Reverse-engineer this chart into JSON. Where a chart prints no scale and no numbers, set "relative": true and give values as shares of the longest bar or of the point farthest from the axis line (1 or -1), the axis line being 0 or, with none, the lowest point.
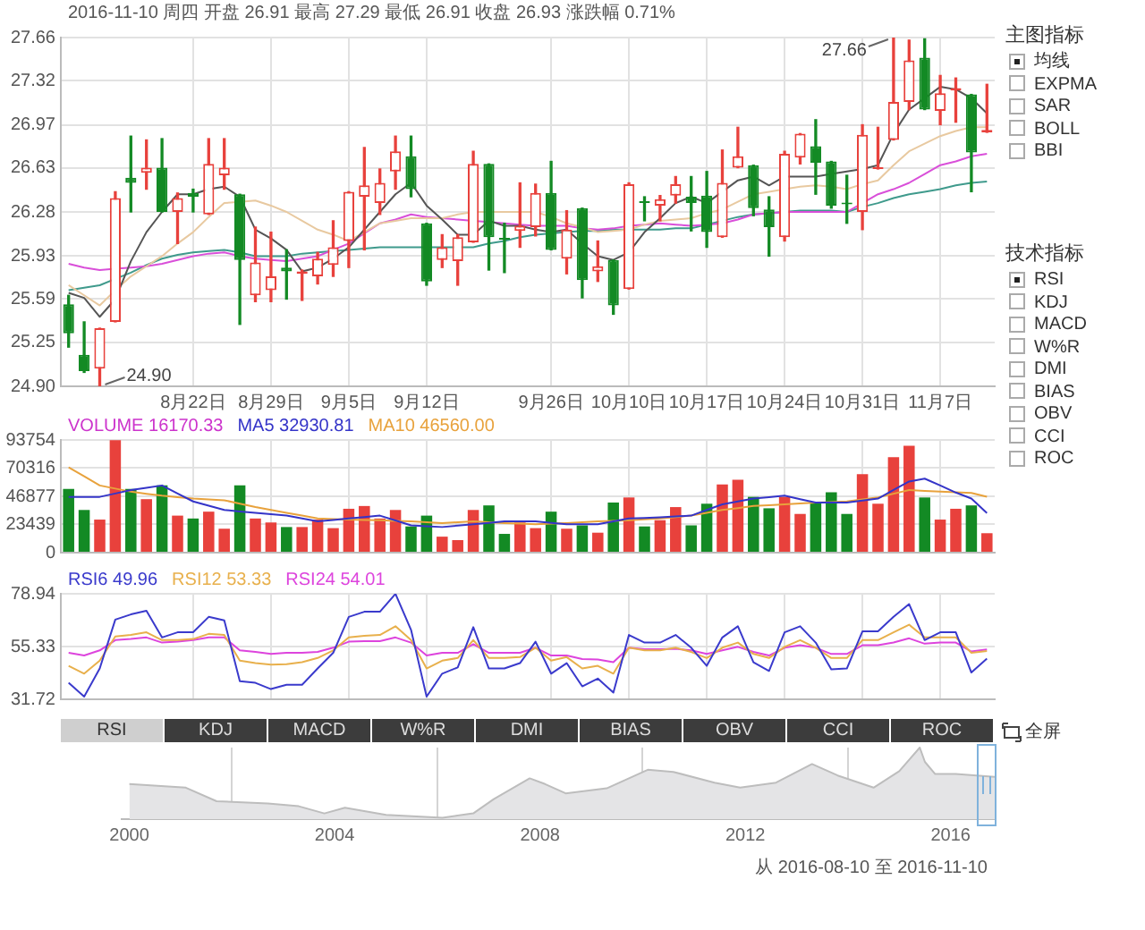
{
  "chart_data": [
    {
      "type": "candlestick",
      "title": "2016-11-10 周四 开盘 26.91 最高 27.29 最低 26.91 收盘 26.93 涨跌幅 0.71%",
      "categories": [
        null,
        null,
        null,
        null,
        null,
        null,
        null,
        null,
        "8月22日",
        null,
        null,
        null,
        null,
        "8月29日",
        null,
        null,
        null,
        null,
        "9月5日",
        null,
        null,
        null,
        null,
        "9月12日",
        null,
        null,
        null,
        null,
        null,
        null,
        null,
        "9月26日",
        null,
        null,
        null,
        null,
        "10月10日",
        null,
        null,
        null,
        null,
        "10月17日",
        null,
        null,
        null,
        null,
        "10月24日",
        null,
        null,
        null,
        null,
        "10月31日",
        null,
        null,
        null,
        null,
        "11月7日",
        null,
        null,
        null
      ],
      "ohlc": [
        [
          25.55,
          25.62,
          25.21,
          25.32
        ],
        [
          25.15,
          25.41,
          25.01,
          25.02
        ],
        [
          25.04,
          25.36,
          24.9,
          25.36
        ],
        [
          25.41,
          26.44,
          25.41,
          26.39
        ],
        [
          26.55,
          26.88,
          26.28,
          26.51
        ],
        [
          26.59,
          26.85,
          26.46,
          26.63
        ],
        [
          26.63,
          26.86,
          26.28,
          26.28
        ],
        [
          26.28,
          26.43,
          26.03,
          26.39
        ],
        [
          26.43,
          26.46,
          26.28,
          26.4
        ],
        [
          26.26,
          26.86,
          26.26,
          26.66
        ],
        [
          26.57,
          26.86,
          26.46,
          26.63
        ],
        [
          26.42,
          26.42,
          25.39,
          25.9
        ],
        [
          25.62,
          26.16,
          25.57,
          25.88
        ],
        [
          25.66,
          26.12,
          25.57,
          25.77
        ],
        [
          25.84,
          25.98,
          25.59,
          25.81
        ],
        [
          25.79,
          25.82,
          25.58,
          25.81
        ],
        [
          25.77,
          25.96,
          25.71,
          25.91
        ],
        [
          25.86,
          26.21,
          25.77,
          26
        ],
        [
          26.05,
          26.44,
          25.84,
          26.44
        ],
        [
          26.4,
          26.79,
          25.98,
          26.49
        ],
        [
          26.35,
          26.62,
          26.26,
          26.51
        ],
        [
          26.6,
          26.88,
          26.46,
          26.76
        ],
        [
          26.72,
          26.88,
          26.4,
          26.46
        ],
        [
          26.19,
          26.19,
          25.7,
          25.73
        ],
        [
          25.9,
          26.1,
          25.84,
          26
        ],
        [
          25.89,
          26.1,
          25.7,
          26.08
        ],
        [
          26.04,
          26.76,
          26.04,
          26.66
        ],
        [
          26.66,
          26.66,
          25.82,
          26.08
        ],
        [
          26.07,
          26.19,
          25.8,
          26.06
        ],
        [
          26.13,
          26.51,
          26,
          26.17
        ],
        [
          26.16,
          26.5,
          26.09,
          26.43
        ],
        [
          26.43,
          26.68,
          25.98,
          25.98
        ],
        [
          25.91,
          26.29,
          25.79,
          26.14
        ],
        [
          26.31,
          26.31,
          25.6,
          25.74
        ],
        [
          25.81,
          26.05,
          25.73,
          25.85
        ],
        [
          25.9,
          25.9,
          25.47,
          25.54
        ],
        [
          25.67,
          26.51,
          25.67,
          26.5
        ],
        [
          26.36,
          26.4,
          26.21,
          26.35
        ],
        [
          26.33,
          26.41,
          26.21,
          26.38
        ],
        [
          26.41,
          26.56,
          26.35,
          26.5
        ],
        [
          26.4,
          26.56,
          26.13,
          26.35
        ],
        [
          26.41,
          26.6,
          26,
          26.12
        ],
        [
          26.08,
          26.77,
          26.08,
          26.51
        ],
        [
          26.63,
          26.95,
          26.63,
          26.72
        ],
        [
          26.65,
          26.65,
          26.25,
          26.31
        ],
        [
          26.3,
          26.4,
          25.93,
          26.16
        ],
        [
          26.08,
          26.76,
          26.05,
          26.74
        ],
        [
          26.71,
          26.9,
          26.66,
          26.9
        ],
        [
          26.8,
          27.01,
          26.42,
          26.67
        ],
        [
          26.68,
          26.68,
          26.31,
          26.33
        ],
        [
          26.35,
          26.57,
          26.19,
          26.34
        ],
        [
          26.28,
          26.97,
          26.14,
          26.89
        ],
        [
          26.62,
          26.95,
          26.62,
          26.63
        ],
        [
          26.85,
          27.66,
          26.85,
          27.15
        ],
        [
          27.15,
          27.64,
          27.09,
          27.48
        ],
        [
          27.5,
          27.65,
          27.09,
          27.09
        ],
        [
          27.08,
          27.36,
          26.97,
          27.22
        ],
        [
          27.24,
          27.34,
          26.99,
          27.26
        ],
        [
          27.21,
          27.21,
          26.44,
          26.75
        ],
        [
          26.91,
          27.29,
          26.91,
          26.93
        ]
      ],
      "colors": [
        "#138a24",
        "#138a24",
        "#e8413c",
        "#e8413c",
        "#138a24",
        "#e8413c",
        "#138a24",
        "#e8413c",
        "#138a24",
        "#e8413c",
        "#e8413c",
        "#138a24",
        "#e8413c",
        "#e8413c",
        "#138a24",
        "#e8413c",
        "#e8413c",
        "#e8413c",
        "#e8413c",
        "#e8413c",
        "#e8413c",
        "#e8413c",
        "#138a24",
        "#138a24",
        "#e8413c",
        "#e8413c",
        "#e8413c",
        "#138a24",
        "#138a24",
        "#e8413c",
        "#e8413c",
        "#138a24",
        "#e8413c",
        "#138a24",
        "#e8413c",
        "#138a24",
        "#e8413c",
        "#138a24",
        "#e8413c",
        "#e8413c",
        "#138a24",
        "#138a24",
        "#e8413c",
        "#e8413c",
        "#138a24",
        "#138a24",
        "#e8413c",
        "#e8413c",
        "#138a24",
        "#138a24",
        "#138a24",
        "#e8413c",
        "#e8413c",
        "#e8413c",
        "#e8413c",
        "#138a24",
        "#e8413c",
        "#e8413c",
        "#138a24",
        "#e8413c"
      ],
      "series": [
        {
          "type": "line",
          "color": "#555555",
          "values": [
            25.64,
            25.6,
            25.45,
            25.59,
            25.89,
            26.12,
            26.28,
            26.42,
            26.42,
            26.46,
            26.48,
            26.4,
            26.14,
            26.07,
            25.98,
            25.81,
            25.84,
            25.91,
            26,
            26.14,
            26.28,
            26.42,
            26.51,
            26.33,
            26.22,
            26.1,
            26.1,
            26.21,
            26.17,
            26.17,
            26.14,
            26.12,
            26.14,
            26.03,
            25.93,
            25.9,
            25.96,
            26.12,
            26.23,
            26.35,
            26.4,
            26.35,
            26.44,
            26.53,
            26.56,
            26.49,
            26.56,
            26.56,
            26.56,
            26.58,
            26.6,
            26.62,
            26.65,
            26.9,
            27.09,
            27.18,
            27.27,
            27.25,
            27.18,
            27.06
          ]
        },
        {
          "type": "line",
          "color": "#e8c9a0",
          "values": [
            25.7,
            25.62,
            25.54,
            25.66,
            25.77,
            25.85,
            25.93,
            26.03,
            26.12,
            26.24,
            26.35,
            26.36,
            26.37,
            26.33,
            26.28,
            26.21,
            26.14,
            26.1,
            26.05,
            26.12,
            26.19,
            26.21,
            26.23,
            26.23,
            26.23,
            26.26,
            26.28,
            26.28,
            26.28,
            26.28,
            26.28,
            26.24,
            26.19,
            26.16,
            26.12,
            26.13,
            26.14,
            26.18,
            26.21,
            26.22,
            26.23,
            26.27,
            26.3,
            26.36,
            26.42,
            26.44,
            26.46,
            26.48,
            26.49,
            26.48,
            26.46,
            26.5,
            26.53,
            26.65,
            26.76,
            26.82,
            26.88,
            26.92,
            26.95,
            26.95
          ]
        },
        {
          "type": "line",
          "color": "#d94fd9",
          "values": [
            25.87,
            25.84,
            25.82,
            25.83,
            25.84,
            25.85,
            25.87,
            25.9,
            25.93,
            25.95,
            25.96,
            25.93,
            25.91,
            25.9,
            25.89,
            25.91,
            25.93,
            25.98,
            26.03,
            26.11,
            26.19,
            26.22,
            26.26,
            26.24,
            26.23,
            26.22,
            26.21,
            26.2,
            26.19,
            26.18,
            26.17,
            26.17,
            26.17,
            26.15,
            26.14,
            26.15,
            26.17,
            26.18,
            26.19,
            26.18,
            26.17,
            26.18,
            26.19,
            26.22,
            26.26,
            26.27,
            26.28,
            26.28,
            26.28,
            26.28,
            26.28,
            26.35,
            26.42,
            26.46,
            26.51,
            26.58,
            26.65,
            26.68,
            26.72,
            26.74
          ]
        },
        {
          "type": "line",
          "color": "#3f9a8c",
          "values": [
            25.66,
            25.68,
            25.7,
            25.75,
            25.8,
            25.86,
            25.91,
            25.94,
            25.96,
            25.97,
            25.98,
            25.96,
            25.93,
            25.93,
            25.93,
            25.95,
            25.96,
            25.97,
            25.98,
            25.99,
            26,
            26,
            26,
            26,
            26,
            26,
            26,
            26.03,
            26.05,
            26.08,
            26.1,
            26.11,
            26.12,
            26.13,
            26.13,
            26.14,
            26.14,
            26.14,
            26.14,
            26.15,
            26.15,
            26.18,
            26.21,
            26.24,
            26.26,
            26.27,
            26.28,
            26.29,
            26.29,
            26.29,
            26.28,
            26.32,
            26.35,
            26.39,
            26.42,
            26.44,
            26.46,
            26.49,
            26.51,
            26.52
          ]
        }
      ],
      "ylim": [
        24.9,
        27.66
      ],
      "yticks": [
        {
          "value": 24.9,
          "label": "24.90"
        },
        25.25,
        25.59,
        25.93,
        26.28,
        26.63,
        26.97,
        27.32,
        27.66
      ],
      "grid": true,
      "annotations": [
        "27.66",
        "24.90"
      ]
    },
    {
      "type": "bar",
      "categories": [
        null,
        null,
        null,
        null,
        null,
        null,
        null,
        null,
        null,
        null,
        null,
        null,
        null,
        null,
        null,
        null,
        null,
        null,
        null,
        null,
        null,
        null,
        null,
        null,
        null,
        null,
        null,
        null,
        null,
        null,
        null,
        null,
        null,
        null,
        null,
        null,
        null,
        null,
        null,
        null,
        null,
        null,
        null,
        null,
        null,
        null,
        null,
        null,
        null,
        null,
        null,
        null,
        null,
        null,
        null,
        null,
        null,
        null,
        null,
        null
      ],
      "series": [
        {
          "name": "VOLUME 16170.33",
          "type": "bar",
          "color": "#cc33cc",
          "colors": [
            "#138a24",
            "#138a24",
            "#e8413c",
            "#e8413c",
            "#138a24",
            "#e8413c",
            "#138a24",
            "#e8413c",
            "#138a24",
            "#e8413c",
            "#e8413c",
            "#138a24",
            "#e8413c",
            "#e8413c",
            "#138a24",
            "#e8413c",
            "#e8413c",
            "#e8413c",
            "#e8413c",
            "#e8413c",
            "#e8413c",
            "#e8413c",
            "#138a24",
            "#138a24",
            "#e8413c",
            "#e8413c",
            "#e8413c",
            "#138a24",
            "#138a24",
            "#e8413c",
            "#e8413c",
            "#138a24",
            "#e8413c",
            "#138a24",
            "#e8413c",
            "#138a24",
            "#e8413c",
            "#138a24",
            "#e8413c",
            "#e8413c",
            "#138a24",
            "#138a24",
            "#e8413c",
            "#e8413c",
            "#138a24",
            "#138a24",
            "#e8413c",
            "#e8413c",
            "#138a24",
            "#138a24",
            "#138a24",
            "#e8413c",
            "#e8413c",
            "#e8413c",
            "#e8413c",
            "#138a24",
            "#e8413c",
            "#e8413c",
            "#138a24",
            "#e8413c"
          ],
          "values": [
            53000,
            35500,
            27500,
            93500,
            53000,
            44500,
            56000,
            30800,
            28400,
            34100,
            19900,
            56000,
            28400,
            25100,
            21300,
            21300,
            27500,
            20400,
            36500,
            38800,
            28400,
            35500,
            21800,
            30800,
            13300,
            10400,
            35500,
            39300,
            15600,
            25100,
            20400,
            34100,
            19900,
            22700,
            16600,
            41700,
            45900,
            21800,
            27000,
            37900,
            22700,
            40700,
            56800,
            60600,
            46400,
            36900,
            46400,
            32200,
            41700,
            50200,
            32200,
            65300,
            40700,
            79500,
            89000,
            45900,
            27500,
            36500,
            39300,
            16170.33
          ]
        },
        {
          "name": "MA5 32930.81",
          "type": "line",
          "color": "#3434c8",
          "values": [
            46400,
            46400,
            46400,
            49200,
            52100,
            54000,
            55900,
            49200,
            42600,
            39000,
            35500,
            34300,
            33100,
            32000,
            30800,
            28400,
            26000,
            27200,
            28400,
            29600,
            30800,
            26800,
            22700,
            22000,
            21300,
            22500,
            23700,
            24800,
            26000,
            26000,
            26000,
            24800,
            23700,
            23700,
            23700,
            26000,
            28400,
            28900,
            29400,
            30100,
            30800,
            35500,
            40200,
            42600,
            45000,
            46200,
            47400,
            44500,
            41700,
            41700,
            41700,
            43300,
            45000,
            52100,
            59200,
            61600,
            55900,
            50000,
            45000,
            32930.81
          ]
        },
        {
          "name": "MA10 46560.00",
          "type": "line",
          "color": "#e8a23c",
          "values": [
            71000,
            63500,
            55900,
            53300,
            50700,
            49000,
            47400,
            46200,
            45000,
            44300,
            43600,
            40700,
            37900,
            35500,
            33100,
            30800,
            28400,
            27900,
            27500,
            27200,
            27000,
            26500,
            26000,
            25300,
            24600,
            25300,
            26000,
            25300,
            24600,
            24100,
            23700,
            24100,
            24600,
            25300,
            26000,
            26500,
            27000,
            27700,
            28400,
            29600,
            30800,
            33100,
            35500,
            37100,
            38800,
            39500,
            40200,
            40900,
            41700,
            42100,
            42600,
            44200,
            45900,
            49000,
            52100,
            51400,
            50700,
            50200,
            49700,
            46560
          ]
        }
      ],
      "ylim": [
        0,
        93754
      ],
      "yticks": [
        0,
        23439,
        46877,
        70316,
        93754
      ],
      "grid": true,
      "tick_labels": "y",
      "legend": "top left"
    },
    {
      "type": "line",
      "categories": [
        null,
        null,
        null,
        null,
        null,
        null,
        null,
        null,
        null,
        null,
        null,
        null,
        null,
        null,
        null,
        null,
        null,
        null,
        null,
        null,
        null,
        null,
        null,
        null,
        null,
        null,
        null,
        null,
        null,
        null,
        null,
        null,
        null,
        null,
        null,
        null,
        null,
        null,
        null,
        null,
        null,
        null,
        null,
        null,
        null,
        null,
        null,
        null,
        null,
        null,
        null,
        null,
        null,
        null,
        null,
        null,
        null,
        null,
        null,
        null
      ],
      "series": [
        {
          "name": "RSI6 49.96",
          "color": "#3a3acc",
          "values": [
            39.1,
            32.9,
            45.5,
            67.4,
            69.7,
            71.3,
            59.4,
            61.7,
            61.7,
            68.6,
            67.0,
            39.8,
            39.1,
            36.3,
            38.2,
            38.2,
            45.5,
            52.5,
            68.6,
            70.9,
            70.9,
            78.9,
            62.8,
            32.9,
            43.2,
            46.0,
            64.0,
            45.5,
            45.5,
            47.9,
            57.5,
            43.2,
            47.9,
            37.5,
            41.0,
            34.7,
            60.5,
            57.1,
            57.1,
            60.5,
            54.8,
            46.7,
            59.4,
            64.4,
            48.3,
            44.4,
            61.7,
            64.4,
            57.1,
            45.1,
            45.5,
            62.1,
            62.1,
            68.6,
            74.3,
            58.2,
            61.7,
            61.7,
            43.7,
            49.96
          ]
        },
        {
          "name": "RSI12 53.33",
          "color": "#e8b04c",
          "values": [
            46.7,
            43.2,
            49.0,
            59.8,
            60.5,
            61.7,
            58.2,
            58.2,
            58.7,
            61.0,
            60.5,
            49.0,
            47.9,
            47.2,
            47.4,
            48.3,
            50.2,
            53.6,
            59.4,
            60.1,
            60.5,
            64.4,
            58.2,
            45.5,
            49.0,
            50.2,
            58.2,
            50.2,
            50.2,
            50.6,
            54.8,
            49.0,
            50.6,
            45.5,
            46.7,
            43.2,
            54.8,
            53.6,
            53.6,
            54.8,
            52.9,
            50.2,
            54.8,
            57.1,
            52.0,
            50.2,
            55.2,
            58.2,
            54.8,
            50.2,
            50.2,
            58.2,
            58.2,
            61.7,
            65.1,
            59.4,
            59.4,
            59.4,
            52.5,
            53.33
          ]
        },
        {
          "name": "RSI24 54.01",
          "color": "#dd44dd",
          "values": [
            52.5,
            51.3,
            53.6,
            58.2,
            58.7,
            59.4,
            57.1,
            57.5,
            58.2,
            59.4,
            59.4,
            53.6,
            52.9,
            52.0,
            52.5,
            52.5,
            52.9,
            54.8,
            57.5,
            57.7,
            57.7,
            59.4,
            57.1,
            51.3,
            52.5,
            52.5,
            56.4,
            52.5,
            52.5,
            52.5,
            54.8,
            51.3,
            51.3,
            49.7,
            49.5,
            48.3,
            54.8,
            54.1,
            54.1,
            54.3,
            53.6,
            52.0,
            53.6,
            55.2,
            52.9,
            51.3,
            54.8,
            55.9,
            54.8,
            52.0,
            52.0,
            55.9,
            55.9,
            57.1,
            59.0,
            56.6,
            57.1,
            57.1,
            53.1,
            54.01
          ]
        }
      ],
      "ylim": [
        31.72,
        78.94
      ],
      "yticks": [
        31.72,
        55.33,
        78.94
      ],
      "grid": true,
      "tick_labels": "y",
      "legend": "top left"
    },
    {
      "type": "area",
      "x": [
        2000.0,
        2001.1,
        2001.7,
        2002.7,
        2003.3,
        2003.8,
        2004.2,
        2005.0,
        2006.1,
        2006.7,
        2007.1,
        2007.8,
        2008.1,
        2008.5,
        2009.3,
        2010.1,
        2010.6,
        2011.4,
        2011.9,
        2012.6,
        2013.3,
        2013.8,
        2014.5,
        2015.0,
        2015.4,
        2015.5,
        2015.7,
        2016.1,
        2016.86
      ],
      "series": [
        {
          "color": "#e4e4e6",
          "values": [
            0.49,
            0.44,
            0.25,
            0.22,
            0.18,
            0.08,
            0.16,
            0.06,
            0.02,
            0.08,
            0.28,
            0.57,
            0.49,
            0.36,
            0.43,
            0.69,
            0.66,
            0.51,
            0.44,
            0.51,
            0.77,
            0.61,
            0.44,
            0.67,
            1,
            0.8,
            0.63,
            0.63,
            0.59
          ]
        }
      ],
      "relative": true,
      "xlim": [
        1999.85,
        2016.86
      ],
      "xticks": [
        2000,
        2004,
        2008,
        2012,
        2016
      ],
      "grid": "x",
      "tick_labels": "x",
      "annotations": [
        "从 2016-08-10 至 2016-11-10"
      ]
    },
    {
      "type": "other",
      "title": "主图指标",
      "annotations": [
        "均线",
        "EXPMA",
        "SAR",
        "BOLL",
        "BBI"
      ]
    },
    {
      "type": "other",
      "title": "技术指标",
      "annotations": [
        "RSI",
        "KDJ",
        "MACD",
        "W%R",
        "DMI",
        "BIAS",
        "OBV",
        "CCI",
        "ROC"
      ]
    },
    {
      "type": "other",
      "annotations": [
        "RSI",
        "KDJ",
        "MACD",
        "W%R",
        "DMI",
        "BIAS",
        "OBV",
        "CCI",
        "ROC",
        "全屏"
      ]
    }
  ]
}
